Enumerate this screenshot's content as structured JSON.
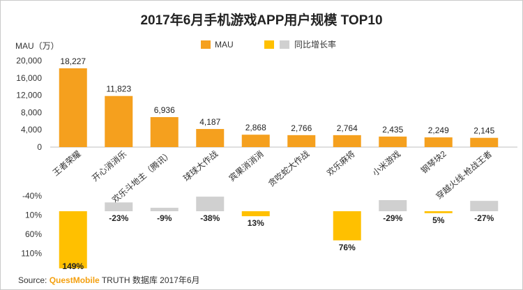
{
  "chart_data": {
    "type": "bar",
    "title": "2017年6月手机游戏APP用户规模 TOP10",
    "ylabel": "MAU（万）",
    "legend": [
      "MAU",
      "同比增长率"
    ],
    "categories": [
      "王者荣耀",
      "开心消消乐",
      "欢乐斗地主（腾讯）",
      "球球大作战",
      "宾果消消消",
      "贪吃蛇大作战",
      "欢乐麻将",
      "小米游戏",
      "钢琴块2",
      "穿越火线-枪战王者"
    ],
    "series": [
      {
        "name": "MAU",
        "values": [
          18227,
          11823,
          6936,
          4187,
          2868,
          2766,
          2764,
          2435,
          2249,
          2145
        ],
        "value_labels": [
          "18,227",
          "11,823",
          "6,936",
          "4,187",
          "2,868",
          "2,766",
          "2,764",
          "2,435",
          "2,249",
          "2,145"
        ],
        "yticks": [
          0,
          4000,
          8000,
          12000,
          16000,
          20000
        ],
        "ytick_labels": [
          "0",
          "4,000",
          "8,000",
          "12,000",
          "16,000",
          "20,000"
        ],
        "ylim": [
          0,
          20000
        ]
      },
      {
        "name": "同比增长率",
        "values": [
          149,
          -23,
          -9,
          -38,
          13,
          null,
          76,
          -29,
          5,
          -27
        ],
        "value_labels": [
          "149%",
          "-23%",
          "-9%",
          "-38%",
          "13%",
          "",
          "76%",
          "-29%",
          "5%",
          "-27%"
        ],
        "yticks": [
          -40,
          10,
          60,
          110
        ],
        "ytick_labels": [
          "-40%",
          "10%",
          "60%",
          "110%"
        ]
      }
    ],
    "colors": {
      "mau": "#F5A01E",
      "growth_positive": "#FFC000",
      "growth_negative": "#D0D0D0"
    }
  },
  "footer": {
    "source_label": "Source:",
    "source_brand": "QuestMobile",
    "source_rest": " TRUTH 数据库 2017年6月"
  }
}
